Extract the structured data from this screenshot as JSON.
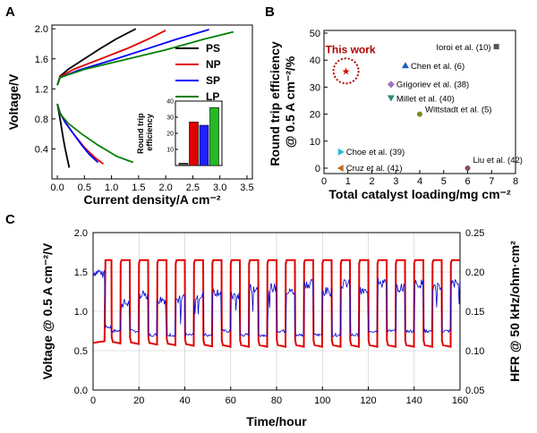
{
  "chart_data": [
    {
      "panel": "A",
      "type": "line",
      "xlabel": "Current density/A cm⁻²",
      "ylabel": "Voltage/V",
      "xlim": [
        -0.1,
        3.6
      ],
      "ylim": [
        0.0,
        2.05
      ],
      "xticks": [
        "0.0",
        "0.5",
        "1.0",
        "1.5",
        "2.0",
        "2.5",
        "3.0",
        "3.5"
      ],
      "yticks": [
        "0.4",
        "0.8",
        "1.2",
        "1.6",
        "2.0"
      ],
      "legend_position": "right",
      "series": [
        {
          "name": "PS",
          "color": "#000000",
          "electrolysis": [
            [
              0,
              1.25
            ],
            [
              0.05,
              1.37
            ],
            [
              0.2,
              1.46
            ],
            [
              0.5,
              1.6
            ],
            [
              0.8,
              1.74
            ],
            [
              1.1,
              1.87
            ],
            [
              1.45,
              2.0
            ]
          ],
          "fuelcell": [
            [
              0,
              1.0
            ],
            [
              0.03,
              0.88
            ],
            [
              0.06,
              0.76
            ],
            [
              0.1,
              0.58
            ],
            [
              0.14,
              0.42
            ],
            [
              0.18,
              0.28
            ],
            [
              0.22,
              0.15
            ]
          ]
        },
        {
          "name": "NP",
          "color": "#e00000",
          "electrolysis": [
            [
              0,
              1.25
            ],
            [
              0.05,
              1.36
            ],
            [
              0.3,
              1.46
            ],
            [
              0.8,
              1.6
            ],
            [
              1.3,
              1.74
            ],
            [
              1.7,
              1.87
            ],
            [
              2.0,
              1.98
            ]
          ],
          "fuelcell": [
            [
              0,
              1.0
            ],
            [
              0.05,
              0.88
            ],
            [
              0.15,
              0.75
            ],
            [
              0.3,
              0.6
            ],
            [
              0.5,
              0.42
            ],
            [
              0.7,
              0.28
            ],
            [
              0.85,
              0.2
            ]
          ]
        },
        {
          "name": "SP",
          "color": "#0000ff",
          "electrolysis": [
            [
              0,
              1.25
            ],
            [
              0.05,
              1.35
            ],
            [
              0.4,
              1.45
            ],
            [
              1.0,
              1.58
            ],
            [
              1.6,
              1.72
            ],
            [
              2.2,
              1.86
            ],
            [
              2.8,
              1.99
            ]
          ],
          "fuelcell": [
            [
              0,
              1.0
            ],
            [
              0.05,
              0.88
            ],
            [
              0.15,
              0.75
            ],
            [
              0.3,
              0.6
            ],
            [
              0.45,
              0.45
            ],
            [
              0.6,
              0.32
            ],
            [
              0.75,
              0.22
            ]
          ]
        },
        {
          "name": "LP",
          "color": "#008000",
          "electrolysis": [
            [
              0,
              1.25
            ],
            [
              0.05,
              1.35
            ],
            [
              0.5,
              1.46
            ],
            [
              1.2,
              1.58
            ],
            [
              2.0,
              1.72
            ],
            [
              2.7,
              1.86
            ],
            [
              3.25,
              1.96
            ]
          ],
          "fuelcell": [
            [
              0,
              1.0
            ],
            [
              0.05,
              0.87
            ],
            [
              0.2,
              0.74
            ],
            [
              0.45,
              0.6
            ],
            [
              0.75,
              0.45
            ],
            [
              1.1,
              0.3
            ],
            [
              1.4,
              0.22
            ]
          ]
        }
      ],
      "inset": {
        "type": "bar",
        "ylabel": "Round trip efficiency",
        "yticks": [
          "10",
          "20",
          "30",
          "40"
        ],
        "ylim": [
          0,
          40
        ],
        "values": [
          1.5,
          27,
          25,
          36
        ],
        "colors": [
          "#555555",
          "#e00000",
          "#2020ff",
          "#22bb22"
        ]
      }
    },
    {
      "panel": "B",
      "type": "scatter",
      "xlabel": "Total catalyst loading/mg cm⁻²",
      "ylabel": "Round trip efficiency @ 0.5 A cm⁻²/%",
      "xlim": [
        0,
        8
      ],
      "ylim": [
        -2,
        51
      ],
      "xticks": [
        "0",
        "1",
        "2",
        "3",
        "4",
        "5",
        "6",
        "7",
        "8"
      ],
      "yticks": [
        "0",
        "10",
        "20",
        "30",
        "40",
        "50"
      ],
      "points": [
        {
          "label": "Ioroi et al. (10)",
          "x": 7.2,
          "y": 45,
          "color": "#555555",
          "marker": "square"
        },
        {
          "label": "Chen et al. (6)",
          "x": 3.4,
          "y": 38,
          "color": "#1f5fbf",
          "marker": "triangle"
        },
        {
          "label": "Grigoriev et al. (38)",
          "x": 2.8,
          "y": 31,
          "color": "#a070c0",
          "marker": "diamond"
        },
        {
          "label": "Millet et al. (40)",
          "x": 2.8,
          "y": 26,
          "color": "#2a8a7a",
          "marker": "tri-down"
        },
        {
          "label": "Wittstadt et al. (5)",
          "x": 4.0,
          "y": 20,
          "color": "#7a8a1a",
          "marker": "circle"
        },
        {
          "label": "Choe et al. (39)",
          "x": 0.7,
          "y": 6,
          "color": "#2ab8d8",
          "marker": "tri-right"
        },
        {
          "label": "Cruz et al. (41)",
          "x": 0.7,
          "y": 0,
          "color": "#c07020",
          "marker": "tri-left"
        },
        {
          "label": "Liu et al. (42)",
          "x": 6.0,
          "y": 0,
          "color": "#8a4a6a",
          "marker": "circle"
        },
        {
          "label": "This work",
          "x": 0.92,
          "y": 36,
          "color": "#d00000",
          "marker": "star"
        }
      ]
    },
    {
      "panel": "C",
      "type": "line",
      "xlabel": "Time/hour",
      "ylabel": "Voltage @ 0.5 A cm⁻²/V",
      "y2label": "HFR @ 50 kHz/ohm·cm²",
      "xlim": [
        0,
        160
      ],
      "ylim": [
        0.0,
        2.0
      ],
      "y2lim": [
        0.05,
        0.25
      ],
      "xticks": [
        "0",
        "20",
        "40",
        "60",
        "80",
        "100",
        "120",
        "140",
        "160"
      ],
      "yticks": [
        "0.0",
        "0.5",
        "1.0",
        "1.5",
        "2.0"
      ],
      "y2ticks": [
        "0.05",
        "0.10",
        "0.15",
        "0.20",
        "0.25"
      ],
      "grid": true,
      "cycle_period_hours": 8,
      "series": [
        {
          "name": "Voltage",
          "color": "#e00000",
          "axis": "left",
          "high_v": 1.65,
          "low_v_start": 0.6,
          "low_v_end": 0.55
        },
        {
          "name": "HFR",
          "color": "#0000cc",
          "axis": "right",
          "values_electrolysis": [
            0.2,
            0.16,
            0.17,
            0.165,
            0.165,
            0.17,
            0.175,
            0.17,
            0.18,
            0.18,
            0.175,
            0.185,
            0.175,
            0.185,
            0.175,
            0.19,
            0.18,
            0.185,
            0.18,
            0.185
          ],
          "values_fuelcell": [
            0.13,
            0.125,
            0.125,
            0.12,
            0.12,
            0.12,
            0.12,
            0.125,
            0.12,
            0.12,
            0.125,
            0.12,
            0.12,
            0.12,
            0.12,
            0.125,
            0.125,
            0.125,
            0.125,
            0.125
          ]
        }
      ]
    }
  ],
  "labels": {
    "panel_a": "A",
    "panel_b": "B",
    "panel_c": "C",
    "this_work": "This work"
  }
}
